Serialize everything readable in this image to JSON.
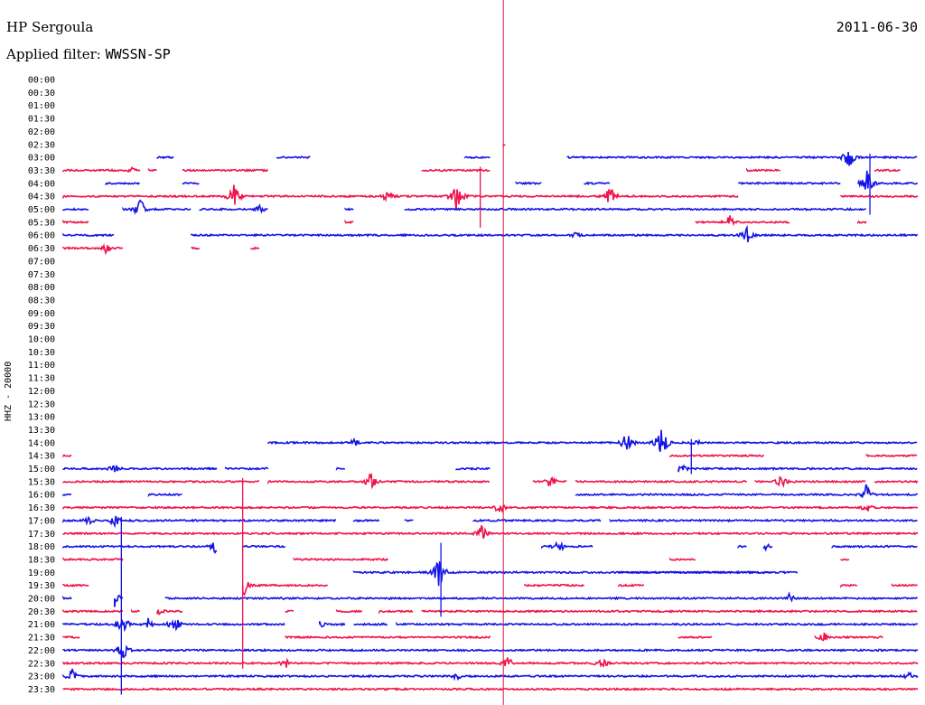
{
  "header": {
    "station": "HP Sergoula",
    "date": "2011-06-30",
    "filter_label": "Applied filter: ",
    "filter_value": "WWSSN-SP"
  },
  "colors": {
    "blue": "#1414e6",
    "red": "#f0144b",
    "marker": "#e0143c"
  },
  "chart_data": {
    "type": "line",
    "title": "HP Sergoula",
    "date": "2011-06-30",
    "ylabel": "HHZ - 20000",
    "row_labels": [
      "00:00",
      "00:30",
      "01:00",
      "01:30",
      "02:00",
      "02:30",
      "03:00",
      "03:30",
      "04:00",
      "04:30",
      "05:00",
      "05:30",
      "06:00",
      "06:30",
      "07:00",
      "07:30",
      "08:00",
      "08:30",
      "09:00",
      "09:30",
      "10:00",
      "10:30",
      "11:00",
      "11:30",
      "12:00",
      "12:30",
      "13:00",
      "13:30",
      "14:00",
      "14:30",
      "15:00",
      "15:30",
      "16:00",
      "16:30",
      "17:00",
      "17:30",
      "18:00",
      "18:30",
      "19:00",
      "19:30",
      "20:00",
      "20:30",
      "21:00",
      "21:30",
      "22:00",
      "22:30",
      "23:00",
      "23:30"
    ],
    "x_unit": "fraction of 30-minute row",
    "marker_fraction": 0.515,
    "rows": [
      {
        "time": "02:30",
        "segments": [
          [
            0.515,
            0.518
          ]
        ],
        "events": []
      },
      {
        "time": "03:00",
        "segments": [
          [
            0.11,
            0.13
          ],
          [
            0.25,
            0.29
          ],
          [
            0.47,
            0.5
          ],
          [
            0.59,
            1.0
          ]
        ],
        "events": [
          [
            0.92,
            14
          ]
        ]
      },
      {
        "time": "03:30",
        "segments": [
          [
            0.0,
            0.09
          ],
          [
            0.1,
            0.11
          ],
          [
            0.14,
            0.24
          ],
          [
            0.42,
            0.5
          ],
          [
            0.8,
            0.84
          ],
          [
            0.95,
            0.98
          ]
        ],
        "events": [
          [
            0.08,
            4
          ]
        ]
      },
      {
        "time": "04:00",
        "segments": [
          [
            0.05,
            0.09
          ],
          [
            0.14,
            0.16
          ],
          [
            0.53,
            0.56
          ],
          [
            0.61,
            0.64
          ],
          [
            0.79,
            0.91
          ],
          [
            0.93,
            1.0
          ]
        ],
        "events": [
          [
            0.94,
            16
          ]
        ]
      },
      {
        "time": "04:30",
        "segments": [
          [
            0.0,
            0.79
          ],
          [
            0.91,
            1.0
          ]
        ],
        "events": [
          [
            0.2,
            14
          ],
          [
            0.38,
            8
          ],
          [
            0.46,
            18
          ],
          [
            0.64,
            12
          ]
        ]
      },
      {
        "time": "05:00",
        "segments": [
          [
            0.0,
            0.03
          ],
          [
            0.07,
            0.15
          ],
          [
            0.16,
            0.24
          ],
          [
            0.33,
            0.34
          ],
          [
            0.4,
            0.94
          ]
        ],
        "events": [
          [
            0.09,
            12
          ],
          [
            0.23,
            5
          ],
          [
            0.95,
            12
          ]
        ]
      },
      {
        "time": "05:30",
        "segments": [
          [
            0.0,
            0.03
          ],
          [
            0.33,
            0.34
          ],
          [
            0.74,
            0.85
          ],
          [
            0.93,
            0.94
          ]
        ],
        "events": [
          [
            0.06,
            6
          ],
          [
            0.78,
            8
          ]
        ]
      },
      {
        "time": "06:00",
        "segments": [
          [
            0.0,
            0.06
          ],
          [
            0.15,
            1.0
          ]
        ],
        "events": [
          [
            0.6,
            6
          ],
          [
            0.8,
            10
          ]
        ]
      },
      {
        "time": "06:30",
        "segments": [
          [
            0.0,
            0.07
          ],
          [
            0.15,
            0.16
          ],
          [
            0.22,
            0.23
          ]
        ],
        "events": [
          [
            0.05,
            6
          ]
        ]
      },
      {
        "time": "14:00",
        "segments": [
          [
            0.24,
            1.0
          ]
        ],
        "events": [
          [
            0.34,
            5
          ],
          [
            0.66,
            14
          ],
          [
            0.7,
            18
          ],
          [
            0.74,
            5
          ]
        ]
      },
      {
        "time": "14:30",
        "segments": [
          [
            0.0,
            0.01
          ],
          [
            0.71,
            0.82
          ],
          [
            0.94,
            1.0
          ]
        ],
        "events": []
      },
      {
        "time": "15:00",
        "segments": [
          [
            0.0,
            0.18
          ],
          [
            0.17,
            0.18
          ],
          [
            0.19,
            0.24
          ],
          [
            0.32,
            0.33
          ],
          [
            0.46,
            0.5
          ],
          [
            0.72,
            1.0
          ]
        ],
        "events": [
          [
            0.06,
            6
          ],
          [
            0.72,
            12
          ]
        ]
      },
      {
        "time": "15:30",
        "segments": [
          [
            0.0,
            0.23
          ],
          [
            0.24,
            0.5
          ],
          [
            0.55,
            0.59
          ],
          [
            0.6,
            0.8
          ],
          [
            0.81,
            0.94
          ],
          [
            0.95,
            1.0
          ]
        ],
        "events": [
          [
            0.36,
            10
          ],
          [
            0.57,
            8
          ],
          [
            0.84,
            8
          ]
        ]
      },
      {
        "time": "16:00",
        "segments": [
          [
            0.0,
            0.01
          ],
          [
            0.1,
            0.14
          ],
          [
            0.6,
            1.0
          ]
        ],
        "events": [
          [
            0.94,
            12
          ]
        ]
      },
      {
        "time": "16:30",
        "segments": [
          [
            0.0,
            1.0
          ]
        ],
        "events": [
          [
            0.51,
            8
          ],
          [
            0.94,
            6
          ]
        ]
      },
      {
        "time": "17:00",
        "segments": [
          [
            0.0,
            0.32
          ],
          [
            0.34,
            0.37
          ],
          [
            0.4,
            0.41
          ],
          [
            0.48,
            0.63
          ],
          [
            0.64,
            1.0
          ]
        ],
        "events": [
          [
            0.03,
            6
          ],
          [
            0.06,
            8
          ]
        ]
      },
      {
        "time": "17:30",
        "segments": [
          [
            0.0,
            1.0
          ]
        ],
        "events": [
          [
            0.49,
            10
          ]
        ]
      },
      {
        "time": "18:00",
        "segments": [
          [
            0.0,
            0.18
          ],
          [
            0.21,
            0.26
          ],
          [
            0.56,
            0.62
          ],
          [
            0.79,
            0.8
          ],
          [
            0.82,
            0.83
          ],
          [
            0.9,
            1.0
          ]
        ],
        "events": [
          [
            0.18,
            12
          ],
          [
            0.58,
            8
          ],
          [
            0.82,
            6
          ]
        ]
      },
      {
        "time": "18:30",
        "segments": [
          [
            0.0,
            0.07
          ],
          [
            0.27,
            0.38
          ],
          [
            0.71,
            0.74
          ],
          [
            0.91,
            0.92
          ]
        ],
        "events": []
      },
      {
        "time": "19:00",
        "segments": [
          [
            0.34,
            0.83
          ],
          [
            0.65,
            0.86
          ]
        ],
        "events": [
          [
            0.44,
            18
          ]
        ]
      },
      {
        "time": "19:30",
        "segments": [
          [
            0.0,
            0.03
          ],
          [
            0.21,
            0.31
          ],
          [
            0.54,
            0.61
          ],
          [
            0.65,
            0.68
          ],
          [
            0.91,
            0.93
          ],
          [
            0.97,
            1.0
          ]
        ],
        "events": [
          [
            0.21,
            16
          ]
        ]
      },
      {
        "time": "20:00",
        "segments": [
          [
            0.0,
            0.01
          ],
          [
            0.06,
            0.07
          ],
          [
            0.12,
            1.0
          ]
        ],
        "events": [
          [
            0.06,
            10
          ],
          [
            0.85,
            6
          ]
        ]
      },
      {
        "time": "20:30",
        "segments": [
          [
            0.0,
            0.07
          ],
          [
            0.08,
            0.09
          ],
          [
            0.11,
            0.14
          ],
          [
            0.26,
            0.27
          ],
          [
            0.32,
            0.35
          ],
          [
            0.37,
            0.41
          ],
          [
            0.42,
            1.0
          ]
        ],
        "events": [
          [
            0.11,
            8
          ]
        ]
      },
      {
        "time": "21:00",
        "segments": [
          [
            0.0,
            0.26
          ],
          [
            0.3,
            0.33
          ],
          [
            0.34,
            0.38
          ],
          [
            0.39,
            1.0
          ]
        ],
        "events": [
          [
            0.07,
            12
          ],
          [
            0.1,
            8
          ],
          [
            0.13,
            12
          ],
          [
            0.3,
            5
          ]
        ]
      },
      {
        "time": "21:30",
        "segments": [
          [
            0.0,
            0.02
          ],
          [
            0.26,
            0.5
          ],
          [
            0.72,
            0.76
          ],
          [
            0.88,
            0.96
          ]
        ],
        "events": [
          [
            0.07,
            14
          ],
          [
            0.89,
            6
          ]
        ]
      },
      {
        "time": "22:00",
        "segments": [
          [
            0.0,
            1.0
          ]
        ],
        "events": [
          [
            0.07,
            12
          ]
        ]
      },
      {
        "time": "22:30",
        "segments": [
          [
            0.0,
            1.0
          ]
        ],
        "events": [
          [
            0.26,
            6
          ],
          [
            0.52,
            8
          ],
          [
            0.63,
            8
          ]
        ]
      },
      {
        "time": "23:00",
        "segments": [
          [
            0.0,
            1.0
          ]
        ],
        "events": [
          [
            0.01,
            10
          ],
          [
            0.46,
            5
          ],
          [
            0.99,
            5
          ]
        ]
      },
      {
        "time": "23:30",
        "segments": [
          [
            0.0,
            1.0
          ]
        ],
        "events": []
      }
    ],
    "long_spikes": [
      {
        "x": 0.068,
        "from_row": "17:00",
        "to_row": "23:30"
      },
      {
        "x": 0.21,
        "from_row": "15:30",
        "to_row": "22:30"
      },
      {
        "x": 0.442,
        "from_row": "18:00",
        "to_row": "20:30"
      },
      {
        "x": 0.488,
        "from_row": "03:30",
        "to_row": "05:30"
      },
      {
        "x": 0.735,
        "from_row": "14:00",
        "to_row": "15:00"
      },
      {
        "x": 0.944,
        "from_row": "03:00",
        "to_row": "05:00"
      }
    ]
  }
}
